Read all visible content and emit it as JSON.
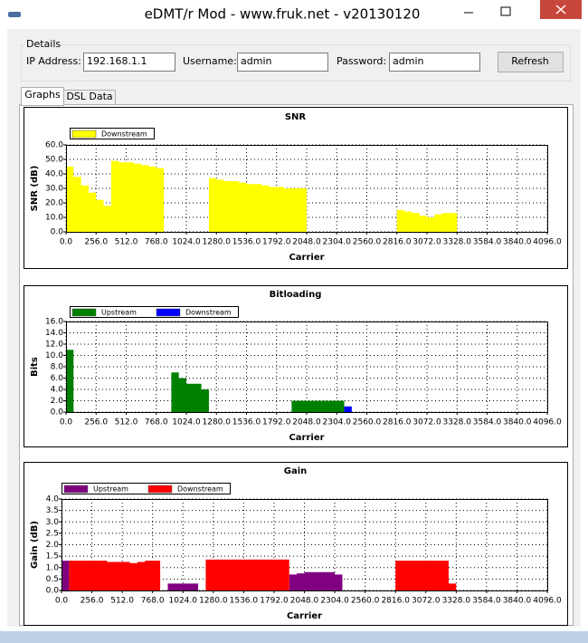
{
  "window": {
    "title": "eDMT/r Mod - www.fruk.net - v20130120"
  },
  "details": {
    "title": "Details",
    "ip_label": "IP Address:",
    "ip": "192.168.1.1",
    "user_label": "Username:",
    "user": "admin",
    "pass_label": "Password:",
    "pass": "admin",
    "refresh": "Refresh"
  },
  "tabs": [
    "Graphs",
    "DSL Data"
  ],
  "chart_data": [
    {
      "type": "area",
      "title": "SNR",
      "x_label": "Carrier",
      "y_label": "SNR (dB)",
      "x": [
        32,
        96,
        160,
        224,
        288,
        352,
        416,
        480,
        544,
        608,
        672,
        736,
        800,
        864,
        928,
        992,
        1056,
        1120,
        1184,
        1248,
        1312,
        1376,
        1440,
        1504,
        1568,
        1632,
        1696,
        1760,
        1824,
        1888,
        1952,
        2016,
        2080,
        2144,
        2208,
        2272,
        2336,
        2400,
        2464,
        2528,
        2592,
        2656,
        2720,
        2784,
        2848,
        2912,
        2976,
        3040,
        3104,
        3168,
        3232,
        3296,
        3360
      ],
      "series": [
        {
          "name": "Downstream",
          "color": "#ffff00",
          "values": [
            45,
            38,
            32,
            27,
            22,
            18,
            49,
            48,
            48,
            47,
            46,
            45,
            44,
            null,
            null,
            null,
            null,
            null,
            null,
            37,
            36,
            35,
            35,
            34,
            33,
            33,
            32,
            31,
            31,
            30,
            30,
            30,
            null,
            null,
            null,
            null,
            null,
            null,
            null,
            null,
            null,
            null,
            null,
            null,
            15,
            14,
            13,
            11,
            10,
            12,
            13,
            13,
            null
          ]
        }
      ],
      "xlim": [
        0,
        4096
      ],
      "xticks": [
        {
          "value": 0,
          "label": "0.0"
        },
        {
          "value": 256,
          "label": "256.0"
        },
        {
          "value": 512,
          "label": "512.0"
        },
        {
          "value": 768,
          "label": "768.0"
        },
        {
          "value": 1024,
          "label": "1024.0"
        },
        {
          "value": 1280,
          "label": "1280.0"
        },
        {
          "value": 1536,
          "label": "1536.0"
        },
        {
          "value": 1792,
          "label": "1792.0"
        },
        {
          "value": 2048,
          "label": "2048.0"
        },
        {
          "value": 2304,
          "label": "2304.0"
        },
        {
          "value": 2560,
          "label": "2560.0"
        },
        {
          "value": 2816,
          "label": "2816.0"
        },
        {
          "value": 3072,
          "label": "3072.0"
        },
        {
          "value": 3328,
          "label": "3328.0"
        },
        {
          "value": 3584,
          "label": "3584.0"
        },
        {
          "value": 3840,
          "label": "3840.0"
        },
        {
          "value": 4096,
          "label": "4096.0"
        }
      ],
      "ylim": [
        0,
        60
      ],
      "yticks": [
        {
          "value": 0,
          "label": "0.0"
        },
        {
          "value": 10,
          "label": "10.0"
        },
        {
          "value": 20,
          "label": "20.0"
        },
        {
          "value": 30,
          "label": "30.0"
        },
        {
          "value": 40,
          "label": "40.0"
        },
        {
          "value": 50,
          "label": "50.0"
        },
        {
          "value": 60,
          "label": "60.0"
        }
      ],
      "grid": true
    },
    {
      "type": "area",
      "title": "Bitloading",
      "x_label": "Carrier",
      "y_label": "Bits",
      "x": [
        32,
        96,
        160,
        224,
        288,
        352,
        416,
        480,
        544,
        608,
        672,
        736,
        800,
        864,
        928,
        992,
        1056,
        1120,
        1184,
        1248,
        1312,
        1376,
        1440,
        1504,
        1568,
        1632,
        1696,
        1760,
        1824,
        1888,
        1952,
        2016,
        2080,
        2144,
        2208,
        2272,
        2336,
        2400,
        2464,
        2528,
        2592,
        2656,
        2720,
        2784,
        2848,
        2912,
        2976,
        3040,
        3104,
        3168,
        3232,
        3296,
        3360
      ],
      "series": [
        {
          "name": "Upstream",
          "color": "#008000",
          "values": [
            11,
            null,
            null,
            null,
            null,
            null,
            null,
            null,
            null,
            null,
            null,
            null,
            null,
            null,
            7,
            6,
            5,
            5,
            4,
            null,
            null,
            null,
            null,
            null,
            null,
            null,
            null,
            null,
            null,
            null,
            2,
            2,
            2,
            2,
            2,
            2,
            2,
            null,
            null,
            null,
            null,
            null,
            null,
            null,
            null,
            null,
            null,
            null,
            null,
            null,
            null,
            null,
            null
          ]
        },
        {
          "name": "Downstream",
          "color": "#0000ff",
          "values": [
            null,
            null,
            null,
            null,
            null,
            null,
            null,
            null,
            null,
            null,
            null,
            null,
            null,
            null,
            null,
            null,
            null,
            null,
            null,
            null,
            null,
            null,
            null,
            null,
            null,
            null,
            null,
            null,
            null,
            null,
            null,
            null,
            null,
            null,
            null,
            null,
            null,
            1,
            null,
            null,
            null,
            null,
            null,
            null,
            null,
            null,
            null,
            null,
            null,
            null,
            null,
            null,
            null
          ]
        }
      ],
      "xlim": [
        0,
        4096
      ],
      "xticks": [
        {
          "value": 0,
          "label": "0.0"
        },
        {
          "value": 256,
          "label": "256.0"
        },
        {
          "value": 512,
          "label": "512.0"
        },
        {
          "value": 768,
          "label": "768.0"
        },
        {
          "value": 1024,
          "label": "1024.0"
        },
        {
          "value": 1280,
          "label": "1280.0"
        },
        {
          "value": 1536,
          "label": "1536.0"
        },
        {
          "value": 1792,
          "label": "1792.0"
        },
        {
          "value": 2048,
          "label": "2048.0"
        },
        {
          "value": 2304,
          "label": "2304.0"
        },
        {
          "value": 2560,
          "label": "2560.0"
        },
        {
          "value": 2816,
          "label": "2816.0"
        },
        {
          "value": 3072,
          "label": "3072.0"
        },
        {
          "value": 3328,
          "label": "3328.0"
        },
        {
          "value": 3584,
          "label": "3584.0"
        },
        {
          "value": 3840,
          "label": "3840.0"
        },
        {
          "value": 4096,
          "label": "4096.0"
        }
      ],
      "ylim": [
        0,
        16
      ],
      "yticks": [
        {
          "value": 0,
          "label": "0.0"
        },
        {
          "value": 2,
          "label": "2.0"
        },
        {
          "value": 4,
          "label": "4.0"
        },
        {
          "value": 6,
          "label": "6.0"
        },
        {
          "value": 8,
          "label": "8.0"
        },
        {
          "value": 10,
          "label": "10.0"
        },
        {
          "value": 12,
          "label": "12.0"
        },
        {
          "value": 14,
          "label": "14.0"
        },
        {
          "value": 16,
          "label": "16.0"
        }
      ],
      "grid": true
    },
    {
      "type": "area",
      "title": "Gain",
      "x_label": "Carrier",
      "y_label": "Gain (dB)",
      "x": [
        32,
        96,
        160,
        224,
        288,
        352,
        416,
        480,
        544,
        608,
        672,
        736,
        800,
        864,
        928,
        992,
        1056,
        1120,
        1184,
        1248,
        1312,
        1376,
        1440,
        1504,
        1568,
        1632,
        1696,
        1760,
        1824,
        1888,
        1952,
        2016,
        2080,
        2144,
        2208,
        2272,
        2336,
        2400,
        2464,
        2528,
        2592,
        2656,
        2720,
        2784,
        2848,
        2912,
        2976,
        3040,
        3104,
        3168,
        3232,
        3296,
        3360
      ],
      "series": [
        {
          "name": "Upstream",
          "color": "#800080",
          "values": [
            1.3,
            null,
            null,
            null,
            null,
            null,
            null,
            null,
            null,
            null,
            null,
            null,
            null,
            null,
            0.3,
            0.3,
            0.3,
            0.3,
            null,
            null,
            null,
            null,
            null,
            null,
            null,
            null,
            null,
            null,
            null,
            null,
            0.7,
            0.75,
            0.8,
            0.8,
            0.8,
            0.8,
            0.7,
            null,
            null,
            null,
            null,
            null,
            null,
            null,
            null,
            null,
            null,
            null,
            null,
            null,
            null,
            null,
            null
          ]
        },
        {
          "name": "Downstream",
          "color": "#ff0000",
          "values": [
            null,
            1.3,
            1.3,
            1.3,
            1.3,
            1.3,
            1.25,
            1.25,
            1.25,
            1.2,
            1.25,
            1.3,
            1.3,
            null,
            null,
            null,
            null,
            null,
            null,
            1.35,
            1.35,
            1.35,
            1.35,
            1.35,
            1.35,
            1.35,
            1.35,
            1.35,
            1.35,
            1.35,
            null,
            null,
            null,
            null,
            null,
            null,
            null,
            null,
            null,
            null,
            null,
            null,
            null,
            null,
            1.3,
            1.3,
            1.3,
            1.3,
            1.3,
            1.3,
            1.3,
            0.3,
            null
          ]
        }
      ],
      "xlim": [
        0,
        4096
      ],
      "xticks": [
        {
          "value": 0,
          "label": "0.0"
        },
        {
          "value": 256,
          "label": "256.0"
        },
        {
          "value": 512,
          "label": "512.0"
        },
        {
          "value": 768,
          "label": "768.0"
        },
        {
          "value": 1024,
          "label": "1024.0"
        },
        {
          "value": 1280,
          "label": "1280.0"
        },
        {
          "value": 1536,
          "label": "1536.0"
        },
        {
          "value": 1792,
          "label": "1792.0"
        },
        {
          "value": 2048,
          "label": "2048.0"
        },
        {
          "value": 2304,
          "label": "2304.0"
        },
        {
          "value": 2560,
          "label": "2560.0"
        },
        {
          "value": 2816,
          "label": "2816.0"
        },
        {
          "value": 3072,
          "label": "3072.0"
        },
        {
          "value": 3328,
          "label": "3328.0"
        },
        {
          "value": 3584,
          "label": "3584.0"
        },
        {
          "value": 3840,
          "label": "3840.0"
        },
        {
          "value": 4096,
          "label": "4096.0"
        }
      ],
      "ylim": [
        0,
        4
      ],
      "yticks": [
        {
          "value": 0,
          "label": "0.0"
        },
        {
          "value": 0.5,
          "label": "0.5"
        },
        {
          "value": 1,
          "label": "1.0"
        },
        {
          "value": 1.5,
          "label": "1.5"
        },
        {
          "value": 2,
          "label": "2.0"
        },
        {
          "value": 2.5,
          "label": "2.5"
        },
        {
          "value": 3,
          "label": "3.0"
        },
        {
          "value": 3.5,
          "label": "3.5"
        },
        {
          "value": 4,
          "label": "4.0"
        }
      ],
      "grid": true
    }
  ]
}
